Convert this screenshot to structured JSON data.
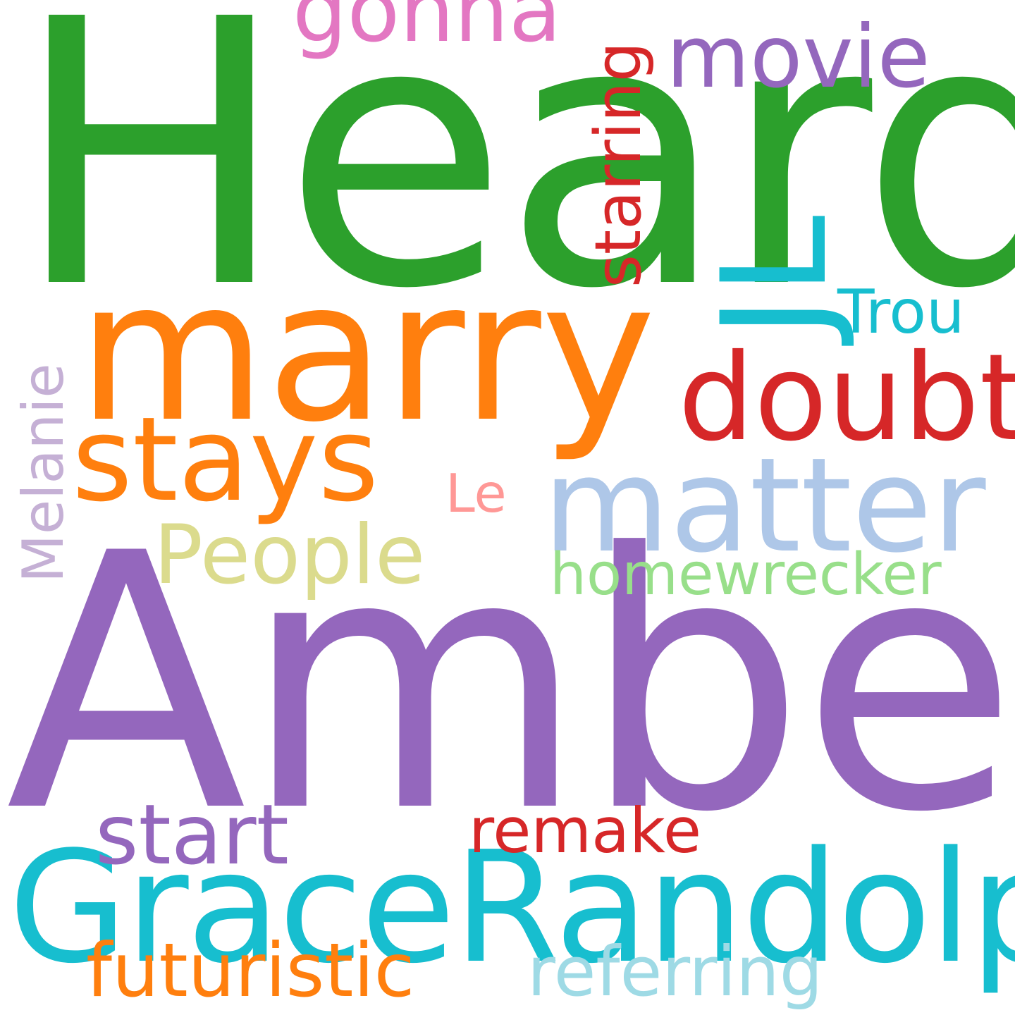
{
  "words": {
    "heard": {
      "text": "Heard",
      "color": "#2ca02c"
    },
    "amber": {
      "text": "Amber",
      "color": "#9467bd"
    },
    "marry": {
      "text": "marry",
      "color": "#ff7f0e"
    },
    "grace": {
      "text": "GraceRandolph",
      "color": "#17becf"
    },
    "matter": {
      "text": "matter",
      "color": "#aec7e8"
    },
    "doubt": {
      "text": "doubt",
      "color": "#d62728"
    },
    "stays": {
      "text": "stays",
      "color": "#ff7f0e"
    },
    "movie": {
      "text": "movie",
      "color": "#9467bd"
    },
    "gonna": {
      "text": "gonna",
      "color": "#e377c2"
    },
    "starring": {
      "text": "starring",
      "color": "#d62728"
    },
    "jl": {
      "text": "JL",
      "color": "#17becf"
    },
    "trou": {
      "text": "Trou",
      "color": "#17becf"
    },
    "people": {
      "text": "People",
      "color": "#dbdb8d"
    },
    "le": {
      "text": "Le",
      "color": "#ff9896"
    },
    "homewrecker": {
      "text": "homewrecker",
      "color": "#98df8a"
    },
    "melanie": {
      "text": "Melanie",
      "color": "#c5b0d5"
    },
    "start": {
      "text": "start",
      "color": "#9467bd"
    },
    "remake": {
      "text": "remake",
      "color": "#d62728"
    },
    "futuristic": {
      "text": "futuristic",
      "color": "#ff7f0e"
    },
    "referring": {
      "text": "referring",
      "color": "#9edae5"
    }
  }
}
